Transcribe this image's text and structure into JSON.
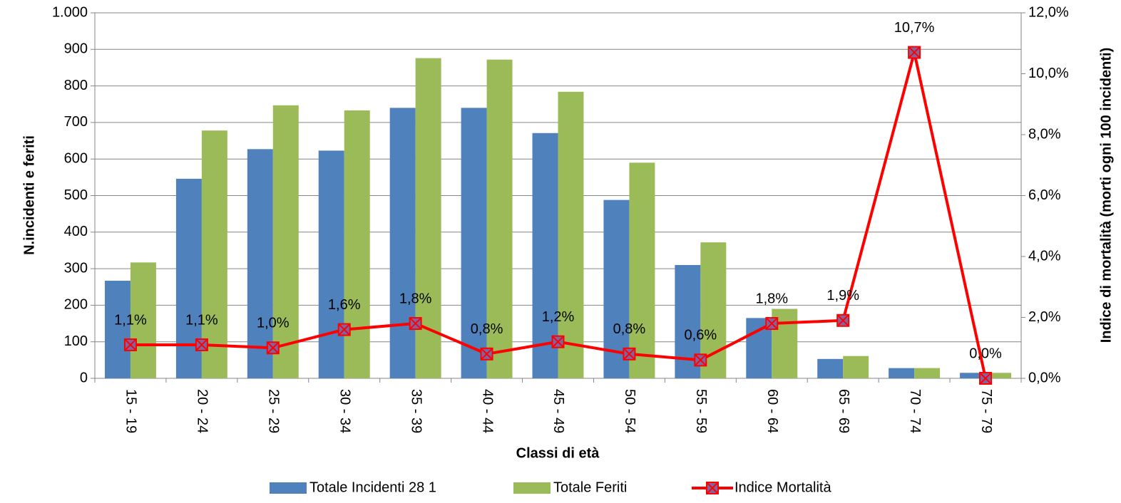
{
  "chart_data": {
    "type": "bar",
    "x_label": "Classi di età",
    "y_label": "N.incidenti e feriti",
    "y2_label": "Indice di mortalità (morti ogni 100 incidenti)",
    "categories": [
      "15 - 19",
      "20 - 24",
      "25 - 29",
      "30 - 34",
      "35 - 39",
      "40 - 44",
      "45 - 49",
      "50 - 54",
      "55 - 59",
      "60 - 64",
      "65 - 69",
      "70 - 74",
      "75 - 79"
    ],
    "series": [
      {
        "name": "Totale Incidenti 28 1",
        "type": "bar",
        "color": "#4f81bd",
        "values": [
          267,
          546,
          627,
          623,
          740,
          740,
          671,
          488,
          310,
          165,
          53,
          28,
          15
        ]
      },
      {
        "name": "Totale Feriti",
        "type": "bar",
        "color": "#9bbb59",
        "values": [
          317,
          678,
          747,
          733,
          876,
          872,
          784,
          590,
          372,
          190,
          61,
          28,
          15
        ]
      },
      {
        "name": "Indice Mortalità",
        "type": "line",
        "axis": "y2",
        "color": "#ff0000",
        "marker_color": "#8064a2",
        "values": [
          1.1,
          1.1,
          1.0,
          1.6,
          1.8,
          0.8,
          1.2,
          0.8,
          0.6,
          1.8,
          1.9,
          10.7,
          0.0
        ],
        "value_labels": [
          "1,1%",
          "1,1%",
          "1,0%",
          "1,6%",
          "1,8%",
          "0,8%",
          "1,2%",
          "0,8%",
          "0,6%",
          "1,8%",
          "1,9%",
          "10,7%",
          "0,0%"
        ]
      }
    ],
    "ylim": [
      0,
      1000
    ],
    "yticks": [
      0,
      100,
      200,
      300,
      400,
      500,
      600,
      700,
      800,
      900,
      {
        "value": 1000,
        "label": "1.000"
      }
    ],
    "y2lim": [
      0,
      12
    ],
    "y2ticks": [
      {
        "value": 0,
        "label": "0,0%"
      },
      {
        "value": 2,
        "label": "2,0%"
      },
      {
        "value": 4,
        "label": "4,0%"
      },
      {
        "value": 6,
        "label": "6,0%"
      },
      {
        "value": 8,
        "label": "8,0%"
      },
      {
        "value": 10,
        "label": "10,0%"
      },
      {
        "value": 12,
        "label": "12,0%"
      }
    ],
    "grid": true,
    "legend": "bottom"
  }
}
